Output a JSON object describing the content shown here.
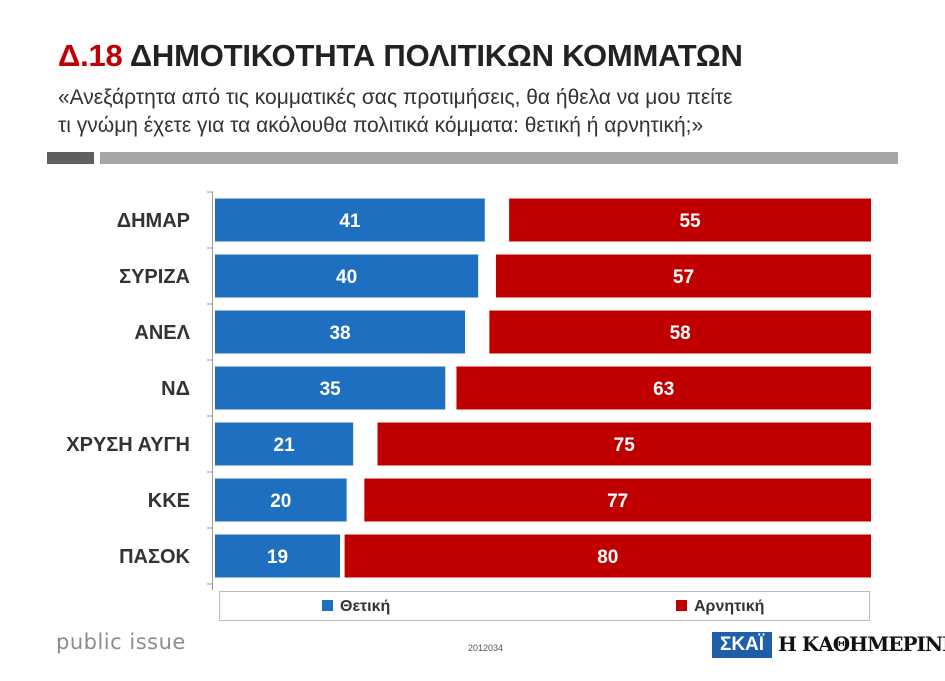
{
  "header": {
    "code": "Δ.18",
    "title": "ΔΗΜΟΤΙΚΟΤΗΤΑ ΠΟΛΙΤΙΚΩΝ ΚΟΜΜΑΤΩΝ",
    "subtitle_line1": "«Ανεξάρτητα από τις κομματικές σας προτιμήσεις, θα ήθελα να μου πείτε",
    "subtitle_line2": "τι γνώμη έχετε για τα ακόλουθα πολιτικά κόμματα: θετική ή αρνητική;»"
  },
  "colors": {
    "positive": "#1f6fc0",
    "negative": "#c00000",
    "label": "#333333"
  },
  "chart_data": {
    "type": "bar",
    "orientation": "horizontal",
    "stacked": true,
    "categories": [
      "ΔΗΜΑΡ",
      "ΣΥΡΙΖΑ",
      "ΑΝΕΛ",
      "ΝΔ",
      "ΧΡΥΣΗ ΑΥΓΗ",
      "ΚΚΕ",
      "ΠΑΣΟΚ"
    ],
    "series": [
      {
        "name": "Θετική",
        "values": [
          41,
          40,
          38,
          35,
          21,
          20,
          19
        ]
      },
      {
        "name": "Αρνητική",
        "values": [
          55,
          57,
          58,
          63,
          75,
          77,
          80
        ]
      }
    ],
    "xlim": [
      0,
      100
    ],
    "legend": "bottom"
  },
  "legend": {
    "positive": "Θετική",
    "negative": "Αρνητική"
  },
  "footer": {
    "brand_left": "public issue",
    "doc_code": "2012034",
    "brand_skai": "ΣΚΑΪ",
    "brand_kathimerini": "Η ΚΑΘΗΜΕΡΙΝΗ"
  }
}
